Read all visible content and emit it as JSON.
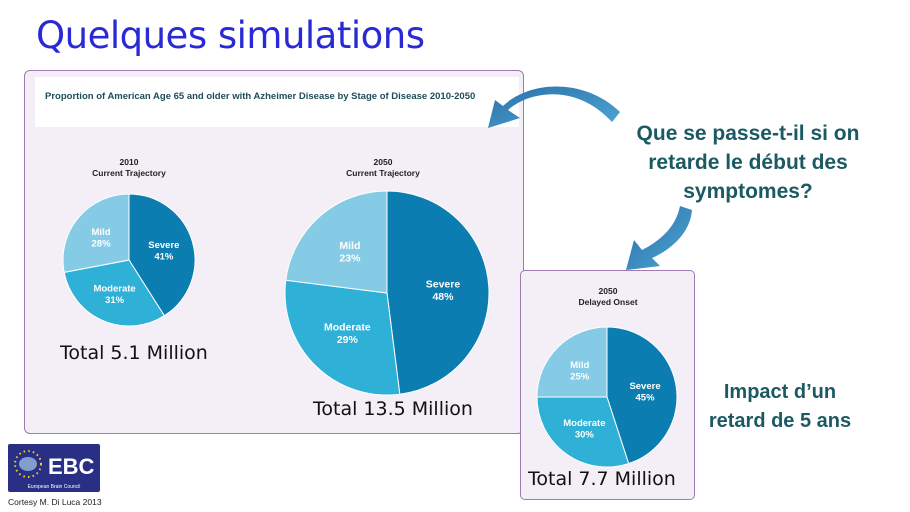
{
  "slide": {
    "title": "Quelques simulations",
    "question": "Que se passe-t-il si on retarde le début des symptomes?",
    "impact": "Impact d’un retard de 5 ans",
    "credit": "Cortesy  M. Di Luca 2013"
  },
  "logo": {
    "text": "EBC",
    "subtext": "European Brain Council",
    "colors": {
      "background": "#2a2f86",
      "stars": "#f2d21b",
      "brain": "#8fb0d8"
    }
  },
  "colors": {
    "severe": "#0b7db1",
    "moderate": "#2fb0d6",
    "mild": "#85cbe6",
    "arrow": "#2f7fb3",
    "title": "#2929d6",
    "teal_text": "#1c5a63",
    "panel_border": "#a07ab0"
  },
  "chart_data": [
    {
      "type": "pie",
      "title": "Proportion of American Age 65 and older with Azheimer Disease by Stage of Disease 2010-2050",
      "year": "2010",
      "subtitle": "Current Trajectory",
      "slices": [
        {
          "label": "Severe",
          "value": 41,
          "display": "41%"
        },
        {
          "label": "Moderate",
          "value": 31,
          "display": "31%"
        },
        {
          "label": "Mild",
          "value": 28,
          "display": "28%"
        }
      ],
      "total": "Total 5.1 Million"
    },
    {
      "type": "pie",
      "year": "2050",
      "subtitle": "Current Trajectory",
      "slices": [
        {
          "label": "Severe",
          "value": 48,
          "display": "48%"
        },
        {
          "label": "Moderate",
          "value": 29,
          "display": "29%"
        },
        {
          "label": "Mild",
          "value": 23,
          "display": "23%"
        }
      ],
      "total": "Total 13.5 Million"
    },
    {
      "type": "pie",
      "year": "2050",
      "subtitle": "Delayed Onset",
      "slices": [
        {
          "label": "Severe",
          "value": 45,
          "display": "45%"
        },
        {
          "label": "Moderate",
          "value": 30,
          "display": "30%"
        },
        {
          "label": "Mild",
          "value": 25,
          "display": "25%"
        }
      ],
      "total": "Total 7.7 Million"
    }
  ]
}
